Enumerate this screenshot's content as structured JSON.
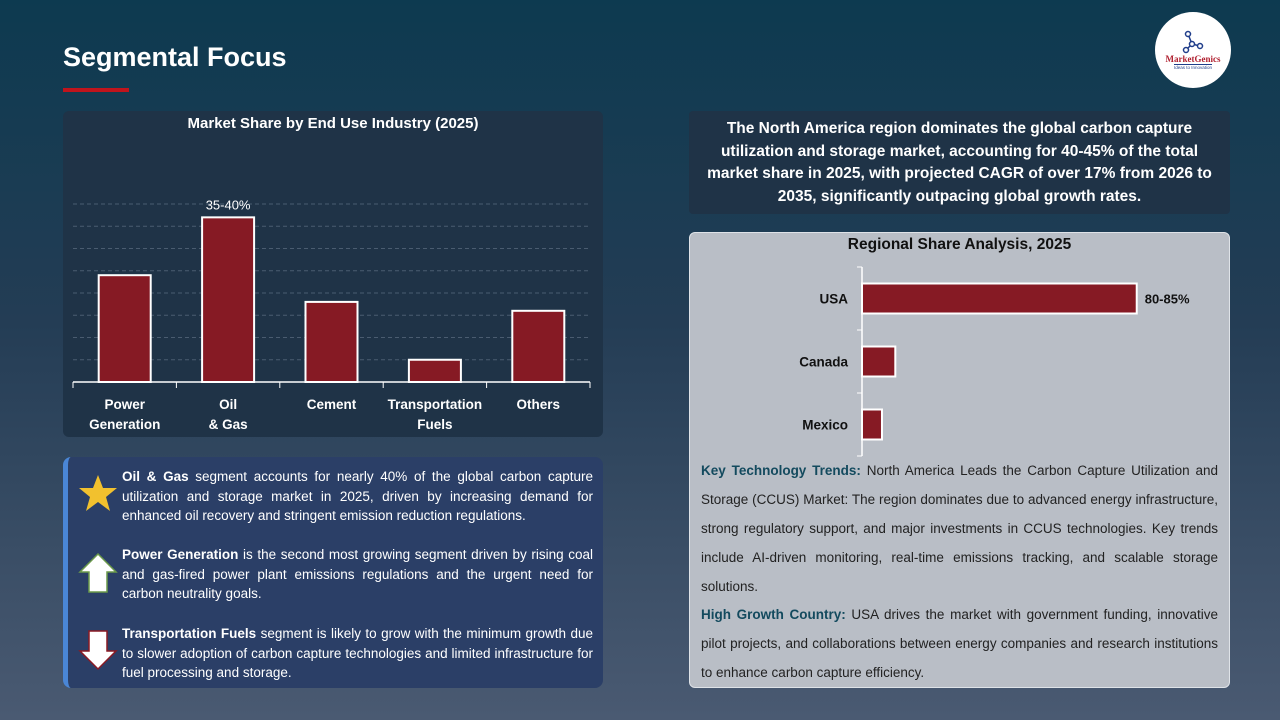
{
  "page": {
    "title": "Segmental Focus"
  },
  "logo": {
    "name": "MarketGenics",
    "tagline": "Ideas to Innovation",
    "icon": "molecule-icon"
  },
  "colors": {
    "bar": "#861a24",
    "accent": "#c0141c",
    "star": "#f2c12e"
  },
  "chart_data": [
    {
      "type": "bar",
      "title": "Market Share by End Use Industry (2025)",
      "categories": [
        "Power Generation",
        "Oil & Gas",
        "Cement",
        "Transportation Fuels",
        "Others"
      ],
      "values": [
        24,
        37,
        18,
        5,
        16
      ],
      "data_labels": [
        "",
        "35-40%",
        "",
        "",
        ""
      ],
      "ylim": [
        0,
        40
      ],
      "grid": true,
      "xlabel": "",
      "ylabel": ""
    },
    {
      "type": "bar",
      "orientation": "horizontal",
      "title": "Regional Share Analysis, 2025",
      "categories": [
        "USA",
        "Canada",
        "Mexico"
      ],
      "values": [
        82.5,
        10,
        6
      ],
      "data_labels": [
        "80-85%",
        "",
        ""
      ],
      "grid": false
    }
  ],
  "segments": [
    {
      "icon": "star-icon",
      "bold": "Oil & Gas",
      "text": " segment accounts for nearly 40% of the global carbon capture utilization and storage market in 2025, driven by increasing demand for enhanced oil recovery and stringent emission reduction regulations."
    },
    {
      "icon": "arrow-up-icon",
      "bold": "Power Generation",
      "text": " is the second most growing segment driven by rising coal and gas-fired power plant emissions regulations and the urgent need for carbon neutrality goals."
    },
    {
      "icon": "arrow-down-icon",
      "bold": "Transportation Fuels",
      "text": " segment is likely to grow with the minimum growth due to slower adoption of carbon capture technologies and limited infrastructure for fuel processing and storage."
    }
  ],
  "summary": "The North America region dominates the global carbon capture utilization and storage market, accounting for 40-45% of the total market share in 2025, with projected CAGR of over 17% from 2026 to 2035, significantly outpacing global growth rates.",
  "trends": [
    {
      "bold": "Key Technology Trends:",
      "text": " North America Leads the Carbon Capture Utilization and Storage (CCUS) Market: The region dominates due to advanced energy infrastructure, strong regulatory support, and major investments in CCUS technologies. Key trends include AI-driven monitoring, real-time emissions tracking, and scalable storage solutions."
    },
    {
      "bold": "High Growth Country:",
      "text": " USA drives the market with government funding, innovative pilot projects, and collaborations between energy companies and research institutions to enhance carbon capture efficiency."
    }
  ]
}
